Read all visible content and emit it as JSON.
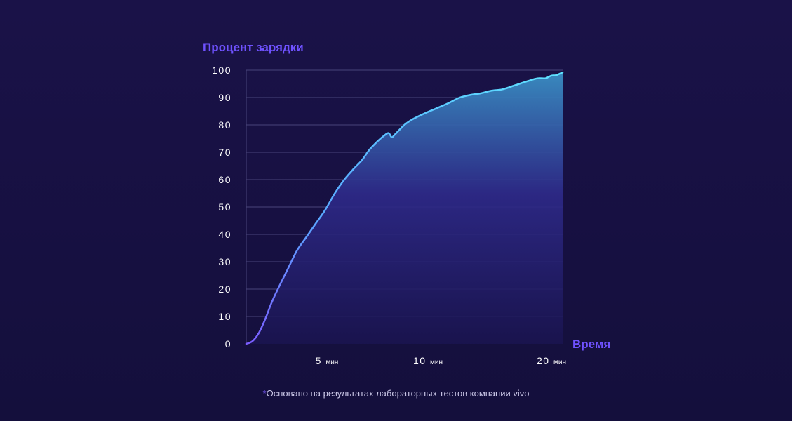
{
  "chart_data": {
    "type": "area",
    "ylabel": "Процент зарядки",
    "xlabel": "Время",
    "ylim": [
      0,
      100
    ],
    "yticks": [
      0,
      10,
      20,
      30,
      40,
      50,
      60,
      70,
      80,
      90,
      100
    ],
    "xticks": [
      {
        "value": "5",
        "unit": "мин",
        "t": 5
      },
      {
        "value": "10",
        "unit": "мин",
        "t": 10
      },
      {
        "value": "20",
        "unit": "мин",
        "t": 20
      }
    ],
    "grid": true,
    "series": [
      {
        "points": [
          [
            0,
            0
          ],
          [
            0.4,
            1
          ],
          [
            0.8,
            4
          ],
          [
            1.2,
            9
          ],
          [
            1.6,
            15
          ],
          [
            2.0,
            20
          ],
          [
            2.6,
            27
          ],
          [
            3.2,
            34
          ],
          [
            3.8,
            39
          ],
          [
            4.4,
            44
          ],
          [
            5.0,
            49
          ],
          [
            5.6,
            55
          ],
          [
            6.2,
            60
          ],
          [
            6.8,
            64
          ],
          [
            7.3,
            67
          ],
          [
            7.8,
            71
          ],
          [
            8.3,
            74
          ],
          [
            8.7,
            76
          ],
          [
            9.0,
            77
          ],
          [
            9.2,
            75.5
          ],
          [
            9.4,
            76.5
          ],
          [
            10.0,
            80
          ],
          [
            10.5,
            82
          ],
          [
            11.2,
            84
          ],
          [
            12.0,
            86
          ],
          [
            12.8,
            88
          ],
          [
            13.5,
            90
          ],
          [
            14.2,
            91
          ],
          [
            14.8,
            91.5
          ],
          [
            15.5,
            92.5
          ],
          [
            16.2,
            93
          ],
          [
            17.0,
            94.5
          ],
          [
            17.8,
            96
          ],
          [
            18.4,
            97
          ],
          [
            18.9,
            97
          ],
          [
            19.1,
            97.5
          ],
          [
            19.3,
            98
          ],
          [
            19.6,
            98.2
          ],
          [
            20.0,
            99.2
          ]
        ]
      }
    ],
    "colors": {
      "line_start": "#7b5cff",
      "line_end": "#5ee2ff",
      "fill_top": "#3a8fc4",
      "fill_bottom": "#140f3c",
      "axis_title": "#6f52ff",
      "tick_text": "#ffffff",
      "grid": "#48447a"
    }
  },
  "footnote": {
    "star": "*",
    "text": "Основано на результатах лабораторных тестов компании vivo"
  }
}
